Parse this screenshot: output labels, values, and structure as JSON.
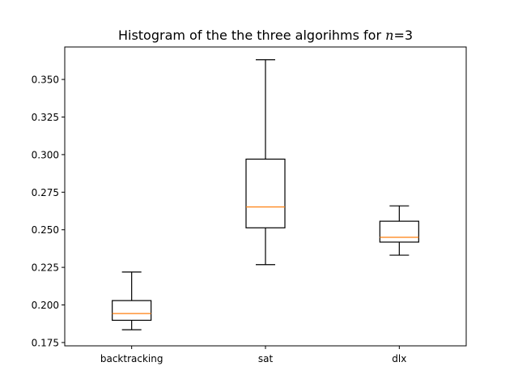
{
  "chart_data": {
    "type": "box",
    "title_prefix": "Histogram of the the three algorihms for ",
    "title_var": "n",
    "title_suffix": "=3",
    "xlabel": "",
    "ylabel": "",
    "ylim": [
      0.1728,
      0.3716
    ],
    "yticks": [
      "0.175",
      "0.200",
      "0.225",
      "0.250",
      "0.275",
      "0.300",
      "0.325",
      "0.350"
    ],
    "ytick_values": [
      0.175,
      0.2,
      0.225,
      0.25,
      0.275,
      0.3,
      0.325,
      0.35
    ],
    "categories": [
      "backtracking",
      "sat",
      "dlx"
    ],
    "boxes": [
      {
        "whisker_low": 0.1835,
        "q1": 0.1898,
        "median": 0.1943,
        "q3": 0.2029,
        "whisker_high": 0.2219
      },
      {
        "whisker_low": 0.2268,
        "q1": 0.2513,
        "median": 0.2652,
        "q3": 0.297,
        "whisker_high": 0.3631
      },
      {
        "whisker_low": 0.2331,
        "q1": 0.2418,
        "median": 0.245,
        "q3": 0.2557,
        "whisker_high": 0.2659
      }
    ],
    "grid": false,
    "legend": "none",
    "colors": {
      "box": "#000000",
      "median": "#ff7f0e",
      "axes": "#000000",
      "background": "#ffffff"
    }
  }
}
